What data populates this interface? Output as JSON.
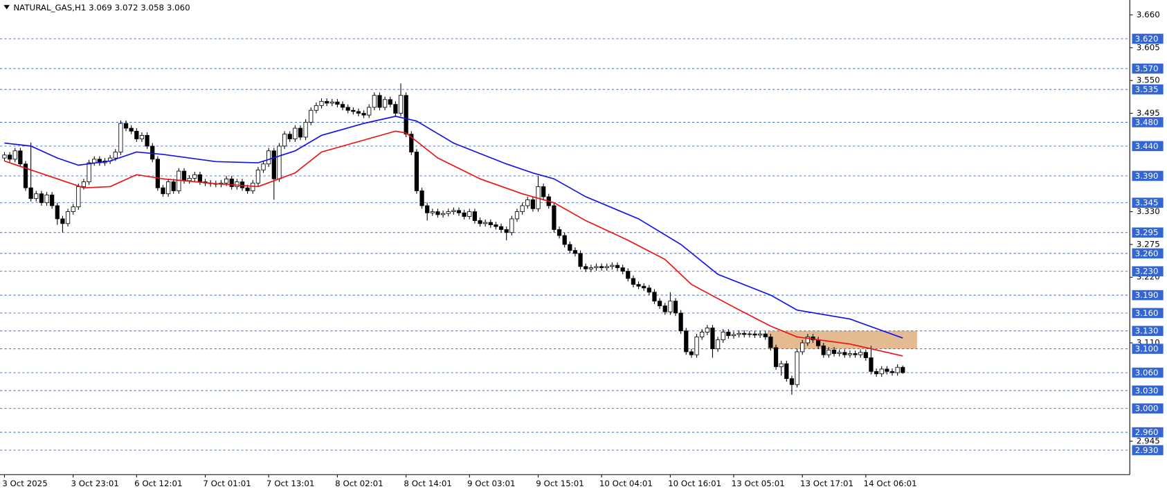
{
  "chart_data": {
    "type": "candlestick",
    "title": "NATURAL_GAS,H1  3.069 3.072 3.058 3.060",
    "ylim": [
      2.889,
      3.685
    ],
    "yticks": [
      {
        "value": 3.66,
        "label": "3.660"
      },
      3.605,
      {
        "value": 3.55,
        "label": "3.550"
      },
      3.495,
      {
        "value": 3.33,
        "label": "3.330"
      },
      3.275,
      {
        "value": 3.22,
        "label": "3.220"
      },
      {
        "value": 3.11,
        "label": "3.110"
      },
      2.945
    ],
    "levels": [
      {
        "value": 3.62,
        "label": "3.620"
      },
      {
        "value": 3.57,
        "label": "3.570"
      },
      3.535,
      {
        "value": 3.48,
        "label": "3.480"
      },
      {
        "value": 3.44,
        "label": "3.440"
      },
      {
        "value": 3.39,
        "label": "3.390"
      },
      3.345,
      3.295,
      {
        "value": 3.26,
        "label": "3.260"
      },
      {
        "value": 3.23,
        "label": "3.230"
      },
      {
        "value": 3.19,
        "label": "3.190"
      },
      {
        "value": 3.16,
        "label": "3.160"
      },
      {
        "value": 3.13,
        "label": "3.130"
      },
      {
        "value": 3.1,
        "label": "3.100"
      },
      {
        "value": 3.06,
        "label": "3.060"
      },
      {
        "value": 3.03,
        "label": "3.030"
      },
      {
        "value": 3.0,
        "label": "3.000"
      },
      {
        "value": 2.96,
        "label": "2.960"
      },
      {
        "value": 2.93,
        "label": "2.930"
      }
    ],
    "level_color": "#3465d4",
    "categories": [
      "3 Oct 2025",
      null,
      null,
      null,
      null,
      null,
      null,
      null,
      null,
      null,
      null,
      null,
      null,
      "3 Oct 23:01",
      null,
      null,
      null,
      null,
      null,
      null,
      null,
      null,
      null,
      null,
      null,
      "6 Oct 12:01",
      null,
      null,
      null,
      null,
      null,
      null,
      null,
      null,
      null,
      null,
      null,
      null,
      "7 Oct 01:01",
      null,
      null,
      null,
      null,
      null,
      null,
      null,
      null,
      null,
      null,
      null,
      "7 Oct 13:01",
      null,
      null,
      null,
      null,
      null,
      null,
      null,
      null,
      null,
      null,
      null,
      null,
      "8 Oct 02:01",
      null,
      null,
      null,
      null,
      null,
      null,
      null,
      null,
      null,
      null,
      null,
      null,
      "8 Oct 14:01",
      null,
      null,
      null,
      null,
      null,
      null,
      null,
      null,
      null,
      null,
      null,
      "9 Oct 03:01",
      null,
      null,
      null,
      null,
      null,
      null,
      null,
      null,
      null,
      null,
      null,
      null,
      "9 Oct 15:01",
      null,
      null,
      null,
      null,
      null,
      null,
      null,
      null,
      null,
      null,
      null,
      "10 Oct 04:01",
      null,
      null,
      null,
      null,
      null,
      null,
      null,
      null,
      null,
      null,
      null,
      null,
      "10 Oct 16:01",
      null,
      null,
      null,
      null,
      null,
      null,
      null,
      null,
      null,
      null,
      null,
      "13 Oct 05:01",
      null,
      null,
      null,
      null,
      null,
      null,
      null,
      null,
      null,
      null,
      null,
      null,
      "13 Oct 17:01",
      null,
      null,
      null,
      null,
      null,
      null,
      null,
      null,
      null,
      null,
      null,
      "14 Oct 06:01",
      null,
      null,
      null,
      null,
      null,
      null,
      null
    ],
    "open": [
      3.42,
      3.425,
      3.418,
      3.432,
      3.41,
      3.37,
      3.352,
      3.36,
      3.345,
      3.358,
      3.34,
      3.318,
      3.31,
      3.33,
      3.338,
      3.372,
      3.38,
      3.412,
      3.418,
      3.412,
      3.415,
      3.42,
      3.43,
      3.478,
      3.47,
      3.465,
      3.452,
      3.458,
      3.44,
      3.418,
      3.37,
      3.36,
      3.38,
      3.365,
      3.398,
      3.382,
      3.386,
      3.392,
      3.38,
      3.378,
      3.377,
      3.376,
      3.378,
      3.385,
      3.372,
      3.38,
      3.37,
      3.365,
      3.378,
      3.4,
      3.41,
      3.432,
      3.385,
      3.44,
      3.46,
      3.452,
      3.47,
      3.455,
      3.48,
      3.5,
      3.508,
      3.515,
      3.512,
      3.514,
      3.51,
      3.505,
      3.5,
      3.498,
      3.495,
      3.492,
      3.505,
      3.525,
      3.505,
      3.518,
      3.51,
      3.495,
      3.525,
      3.46,
      3.43,
      3.365,
      3.34,
      3.328,
      3.33,
      3.325,
      3.327,
      3.33,
      3.332,
      3.328,
      3.322,
      3.33,
      3.315,
      3.31,
      3.312,
      3.308,
      3.305,
      3.3,
      3.295,
      3.318,
      3.33,
      3.34,
      3.35,
      3.335,
      3.372,
      3.355,
      3.34,
      3.3,
      3.29,
      3.275,
      3.265,
      3.26,
      3.238,
      3.234,
      3.236,
      3.238,
      3.236,
      3.238,
      3.24,
      3.236,
      3.23,
      3.218,
      3.208,
      3.205,
      3.202,
      3.195,
      3.18,
      3.172,
      3.162,
      3.18,
      3.16,
      3.13,
      3.095,
      3.09,
      3.12,
      3.128,
      3.135,
      3.1,
      3.115,
      3.128,
      3.122,
      3.124,
      3.126,
      3.124,
      3.125,
      3.123,
      3.125,
      3.12,
      3.102,
      3.07,
      3.075,
      3.05,
      3.04,
      3.095,
      3.11,
      3.12,
      3.115,
      3.105,
      3.09,
      3.098,
      3.092,
      3.094,
      3.09,
      3.092,
      3.09,
      3.094,
      3.085,
      3.062,
      3.058,
      3.066,
      3.062,
      3.06,
      3.069
    ],
    "high": [
      3.43,
      3.43,
      3.437,
      3.437,
      3.415,
      3.446,
      3.365,
      3.365,
      3.363,
      3.363,
      3.345,
      3.323,
      3.335,
      3.343,
      3.377,
      3.385,
      3.417,
      3.423,
      3.423,
      3.42,
      3.425,
      3.435,
      3.483,
      3.483,
      3.475,
      3.47,
      3.463,
      3.463,
      3.445,
      3.423,
      3.375,
      3.385,
      3.385,
      3.403,
      3.403,
      3.391,
      3.397,
      3.397,
      3.385,
      3.383,
      3.382,
      3.383,
      3.39,
      3.39,
      3.385,
      3.385,
      3.375,
      3.383,
      3.405,
      3.415,
      3.437,
      3.437,
      3.445,
      3.465,
      3.465,
      3.475,
      3.475,
      3.485,
      3.505,
      3.513,
      3.52,
      3.52,
      3.519,
      3.519,
      3.515,
      3.51,
      3.505,
      3.503,
      3.5,
      3.51,
      3.53,
      3.53,
      3.523,
      3.523,
      3.515,
      3.545,
      3.53,
      3.465,
      3.435,
      3.37,
      3.345,
      3.335,
      3.335,
      3.332,
      3.335,
      3.337,
      3.337,
      3.333,
      3.335,
      3.335,
      3.32,
      3.317,
      3.317,
      3.313,
      3.31,
      3.305,
      3.323,
      3.335,
      3.345,
      3.355,
      3.355,
      3.39,
      3.377,
      3.36,
      3.345,
      3.305,
      3.295,
      3.28,
      3.27,
      3.265,
      3.243,
      3.241,
      3.243,
      3.243,
      3.243,
      3.245,
      3.245,
      3.241,
      3.235,
      3.223,
      3.213,
      3.21,
      3.207,
      3.2,
      3.185,
      3.177,
      3.195,
      3.185,
      3.165,
      3.135,
      3.1,
      3.125,
      3.133,
      3.14,
      3.14,
      3.12,
      3.133,
      3.133,
      3.129,
      3.131,
      3.131,
      3.13,
      3.13,
      3.13,
      3.13,
      3.125,
      3.107,
      3.08,
      3.08,
      3.055,
      3.1,
      3.115,
      3.125,
      3.125,
      3.12,
      3.11,
      3.103,
      3.103,
      3.099,
      3.099,
      3.097,
      3.097,
      3.099,
      3.099,
      3.105,
      3.067,
      3.071,
      3.071,
      3.067,
      3.074,
      3.072
    ],
    "low": [
      3.415,
      3.413,
      3.413,
      3.405,
      3.365,
      3.347,
      3.347,
      3.34,
      3.34,
      3.335,
      3.308,
      3.295,
      3.305,
      3.325,
      3.333,
      3.367,
      3.375,
      3.407,
      3.407,
      3.407,
      3.41,
      3.415,
      3.425,
      3.465,
      3.46,
      3.447,
      3.447,
      3.435,
      3.413,
      3.365,
      3.355,
      3.355,
      3.36,
      3.36,
      3.377,
      3.377,
      3.381,
      3.375,
      3.373,
      3.372,
      3.371,
      3.371,
      3.373,
      3.367,
      3.367,
      3.365,
      3.36,
      3.36,
      3.373,
      3.395,
      3.405,
      3.35,
      3.38,
      3.435,
      3.447,
      3.447,
      3.45,
      3.45,
      3.475,
      3.495,
      3.503,
      3.507,
      3.507,
      3.505,
      3.5,
      3.495,
      3.493,
      3.49,
      3.487,
      3.487,
      3.5,
      3.5,
      3.5,
      3.505,
      3.49,
      3.49,
      3.455,
      3.425,
      3.36,
      3.335,
      3.315,
      3.323,
      3.32,
      3.32,
      3.322,
      3.325,
      3.323,
      3.317,
      3.317,
      3.31,
      3.305,
      3.305,
      3.303,
      3.3,
      3.295,
      3.282,
      3.29,
      3.313,
      3.325,
      3.335,
      3.33,
      3.33,
      3.35,
      3.335,
      3.295,
      3.285,
      3.27,
      3.26,
      3.255,
      3.233,
      3.229,
      3.229,
      3.231,
      3.231,
      3.231,
      3.233,
      3.231,
      3.225,
      3.213,
      3.203,
      3.2,
      3.197,
      3.19,
      3.175,
      3.167,
      3.157,
      3.157,
      3.155,
      3.125,
      3.09,
      3.085,
      3.085,
      3.115,
      3.123,
      3.085,
      3.095,
      3.11,
      3.117,
      3.117,
      3.119,
      3.119,
      3.119,
      3.118,
      3.118,
      3.115,
      3.097,
      3.065,
      3.055,
      3.045,
      3.023,
      3.035,
      3.09,
      3.105,
      3.11,
      3.1,
      3.085,
      3.085,
      3.087,
      3.087,
      3.085,
      3.085,
      3.085,
      3.085,
      3.08,
      3.057,
      3.053,
      3.053,
      3.057,
      3.055,
      3.055,
      3.058
    ],
    "close": [
      3.425,
      3.418,
      3.432,
      3.41,
      3.37,
      3.352,
      3.36,
      3.345,
      3.358,
      3.34,
      3.318,
      3.31,
      3.33,
      3.338,
      3.372,
      3.38,
      3.412,
      3.418,
      3.412,
      3.415,
      3.42,
      3.43,
      3.478,
      3.47,
      3.465,
      3.452,
      3.458,
      3.44,
      3.418,
      3.37,
      3.36,
      3.38,
      3.365,
      3.398,
      3.382,
      3.386,
      3.392,
      3.38,
      3.378,
      3.377,
      3.376,
      3.378,
      3.385,
      3.372,
      3.38,
      3.37,
      3.365,
      3.378,
      3.4,
      3.41,
      3.432,
      3.385,
      3.44,
      3.46,
      3.452,
      3.47,
      3.455,
      3.48,
      3.5,
      3.508,
      3.515,
      3.512,
      3.514,
      3.51,
      3.505,
      3.5,
      3.498,
      3.495,
      3.492,
      3.505,
      3.525,
      3.505,
      3.518,
      3.51,
      3.495,
      3.525,
      3.46,
      3.43,
      3.365,
      3.34,
      3.328,
      3.33,
      3.325,
      3.327,
      3.33,
      3.332,
      3.328,
      3.322,
      3.33,
      3.315,
      3.31,
      3.312,
      3.308,
      3.305,
      3.3,
      3.295,
      3.318,
      3.33,
      3.34,
      3.35,
      3.335,
      3.372,
      3.355,
      3.34,
      3.3,
      3.29,
      3.275,
      3.265,
      3.26,
      3.238,
      3.234,
      3.236,
      3.238,
      3.236,
      3.238,
      3.24,
      3.236,
      3.23,
      3.218,
      3.208,
      3.205,
      3.202,
      3.195,
      3.18,
      3.172,
      3.162,
      3.18,
      3.16,
      3.13,
      3.095,
      3.09,
      3.12,
      3.128,
      3.135,
      3.1,
      3.115,
      3.128,
      3.122,
      3.124,
      3.126,
      3.124,
      3.125,
      3.123,
      3.125,
      3.12,
      3.102,
      3.07,
      3.075,
      3.05,
      3.04,
      3.095,
      3.11,
      3.12,
      3.115,
      3.105,
      3.09,
      3.098,
      3.092,
      3.094,
      3.09,
      3.092,
      3.09,
      3.094,
      3.085,
      3.062,
      3.058,
      3.066,
      3.062,
      3.06,
      3.069,
      3.06
    ],
    "lines": [
      {
        "color": "#1010ee",
        "x": [
          0,
          5,
          10,
          14,
          20,
          25,
          30,
          40,
          48,
          55,
          60,
          68,
          74,
          78,
          85,
          95,
          100,
          104,
          110,
          120,
          128,
          135,
          145,
          150,
          160,
          170
        ],
        "values": [
          3.445,
          3.44,
          3.42,
          3.408,
          3.415,
          3.43,
          3.426,
          3.414,
          3.412,
          3.432,
          3.458,
          3.478,
          3.49,
          3.482,
          3.445,
          3.41,
          3.395,
          3.385,
          3.355,
          3.318,
          3.275,
          3.225,
          3.19,
          3.165,
          3.15,
          3.118
        ]
      },
      {
        "color": "#ee1111",
        "x": [
          0,
          5,
          10,
          15,
          20,
          25,
          30,
          40,
          48,
          55,
          60,
          68,
          74,
          76,
          82,
          90,
          98,
          104,
          110,
          118,
          125,
          130,
          138,
          145,
          150,
          160,
          170
        ],
        "values": [
          3.415,
          3.4,
          3.385,
          3.37,
          3.372,
          3.392,
          3.385,
          3.377,
          3.372,
          3.395,
          3.43,
          3.45,
          3.465,
          3.462,
          3.42,
          3.385,
          3.36,
          3.345,
          3.315,
          3.282,
          3.25,
          3.208,
          3.17,
          3.138,
          3.12,
          3.108,
          3.088
        ]
      }
    ],
    "zone": {
      "x": [
        144.4,
        172.7
      ],
      "y": [
        3.1,
        3.13
      ],
      "color": "#dfae7d"
    }
  }
}
